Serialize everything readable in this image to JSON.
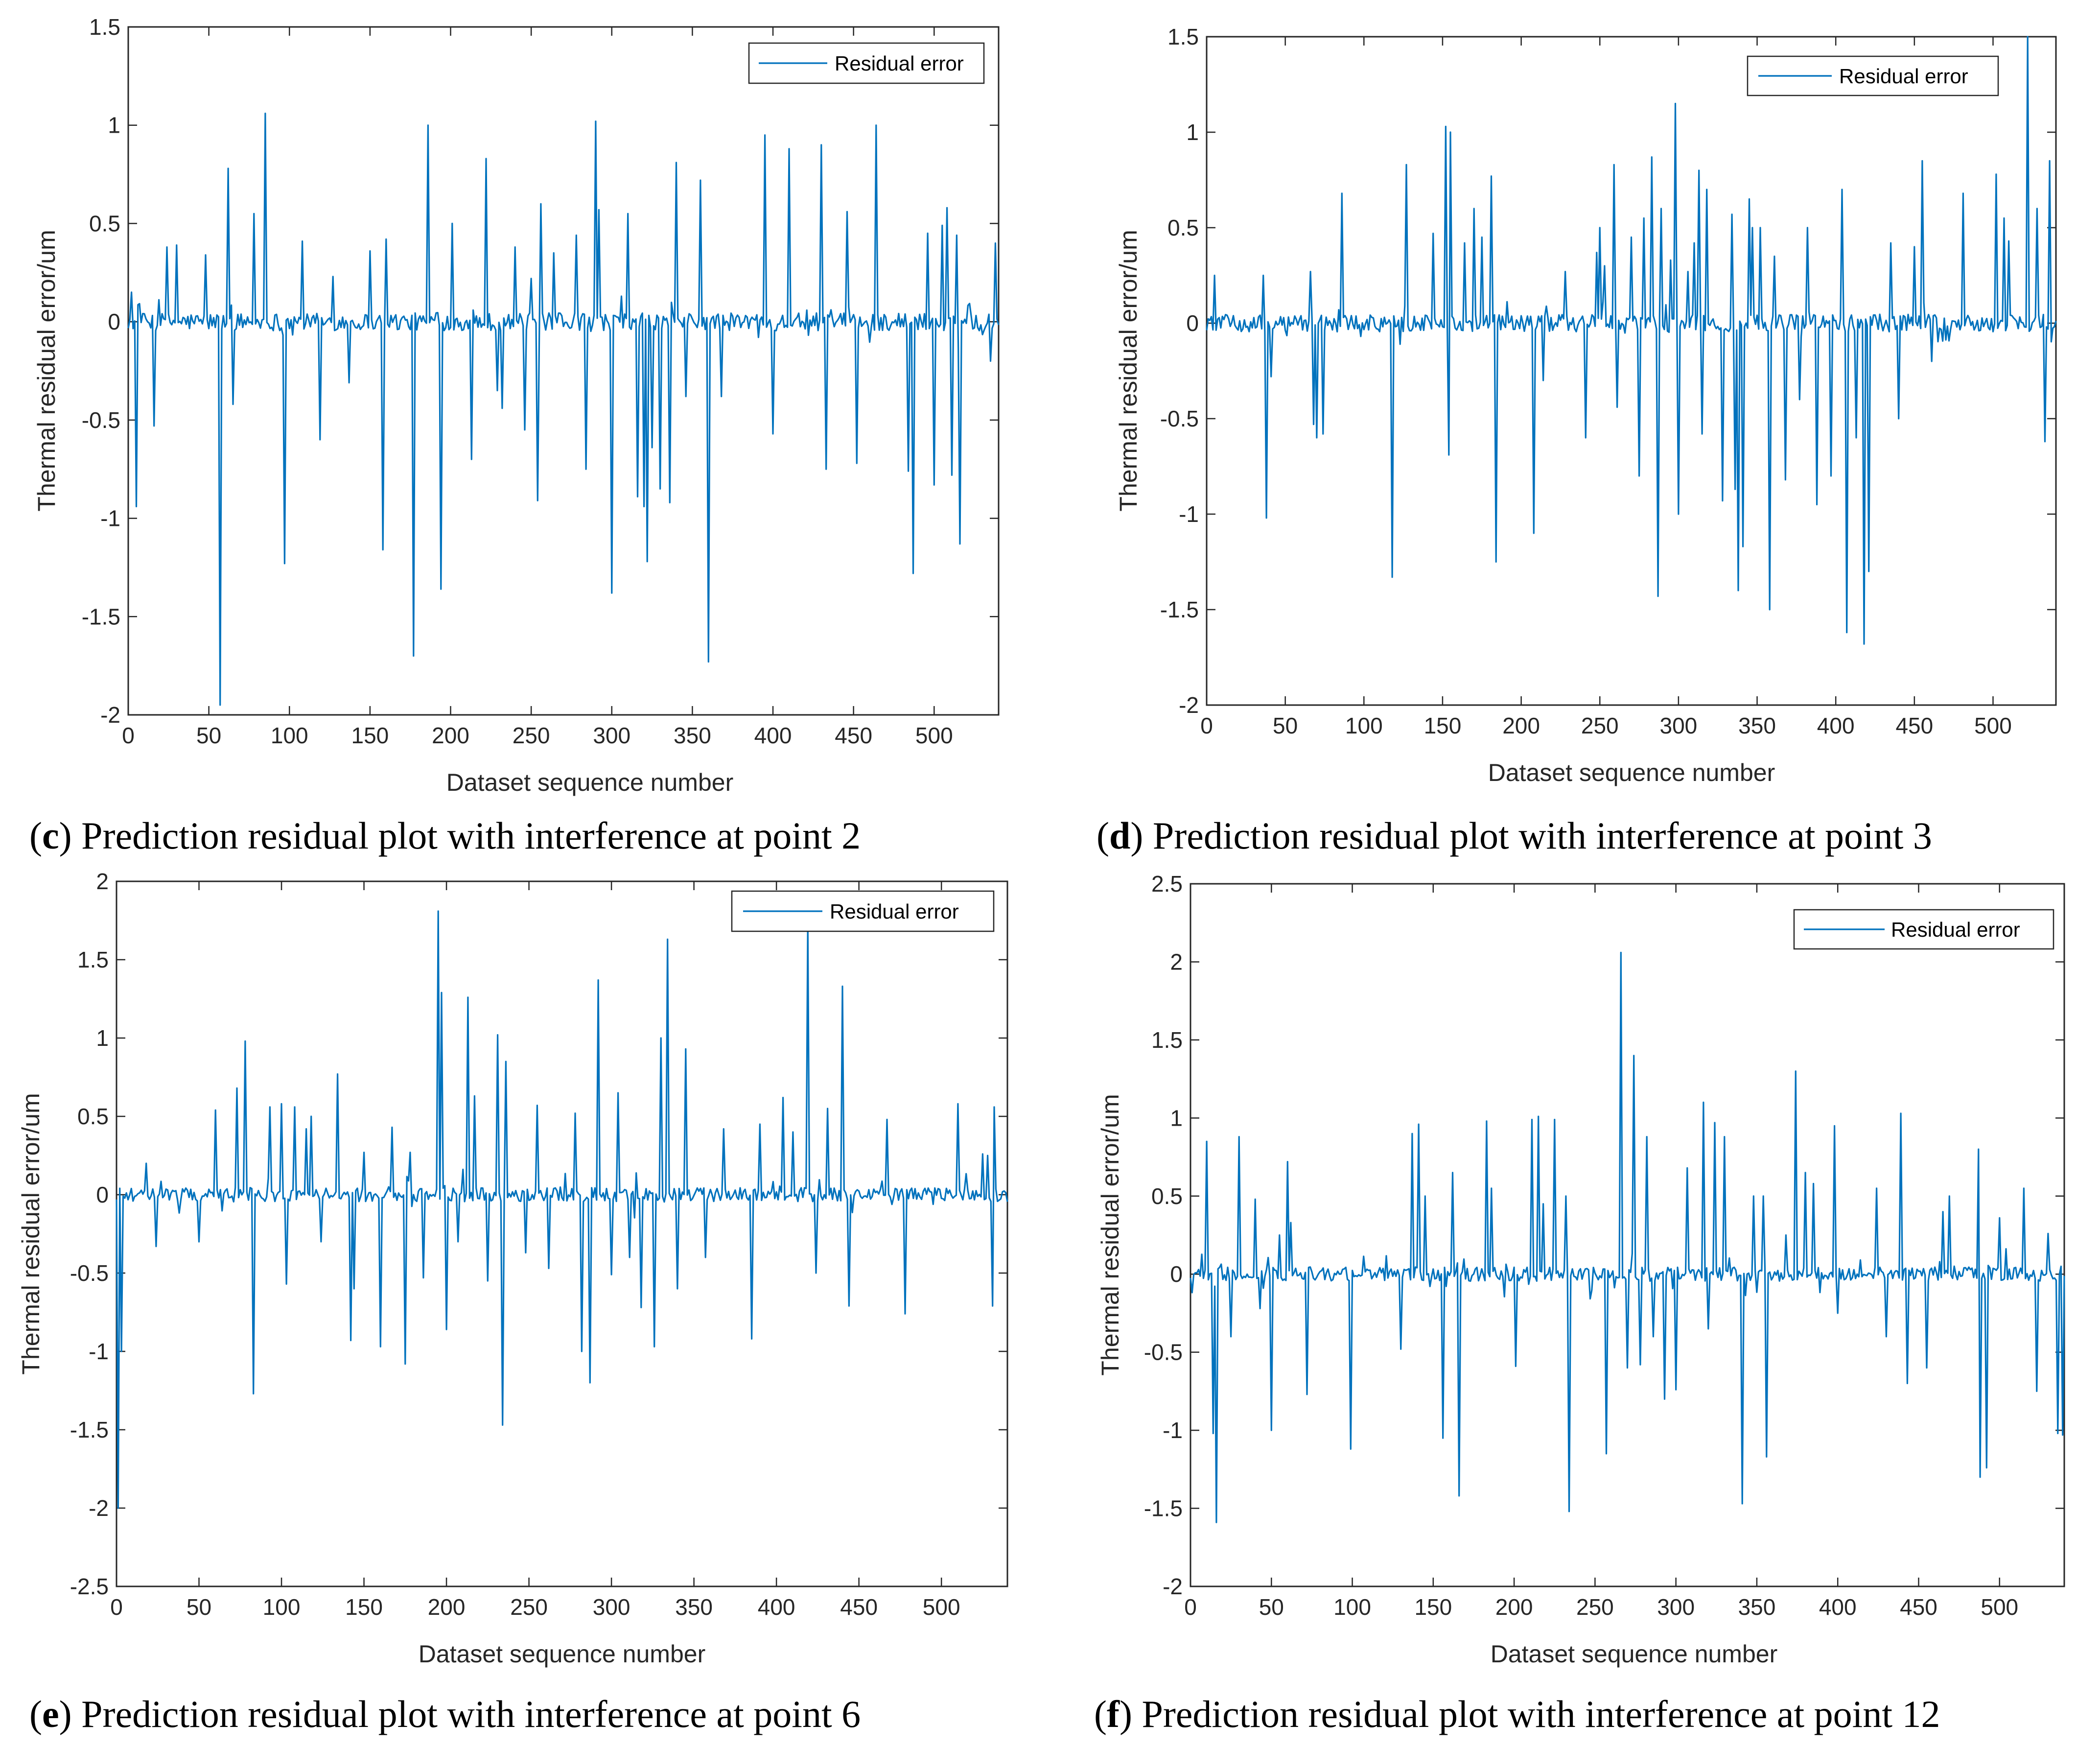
{
  "series_color": "#0072BD",
  "chart_data": [
    {
      "type": "line",
      "panel": "c",
      "caption": "Prediction residual plot with interference at point 2",
      "xlabel": "Dataset sequence number",
      "ylabel": "Thermal residual error/um",
      "legend": "Residual error",
      "legend_position": "top-right",
      "xlim": [
        0,
        540
      ],
      "ylim": [
        -2,
        1.5
      ],
      "xticks": [
        "0",
        "50",
        "100",
        "150",
        "200",
        "250",
        "300",
        "350",
        "400",
        "450",
        "500"
      ],
      "yticks": [
        "-2",
        "-1.5",
        "-1",
        "-0.5",
        "0",
        "0.5",
        "1",
        "1.5"
      ],
      "spikes": [
        [
          2,
          0.15
        ],
        [
          5,
          -0.94
        ],
        [
          16,
          -0.53
        ],
        [
          24,
          0.38
        ],
        [
          30,
          0.39
        ],
        [
          48,
          0.34
        ],
        [
          57,
          -1.95
        ],
        [
          62,
          0.78
        ],
        [
          65,
          -0.42
        ],
        [
          78,
          0.55
        ],
        [
          85,
          1.06
        ],
        [
          97,
          -1.23
        ],
        [
          108,
          0.41
        ],
        [
          119,
          -0.6
        ],
        [
          127,
          0.23
        ],
        [
          137,
          -0.31
        ],
        [
          150,
          0.36
        ],
        [
          158,
          -1.16
        ],
        [
          160,
          0.42
        ],
        [
          177,
          -1.7
        ],
        [
          186,
          1.0
        ],
        [
          194,
          -1.36
        ],
        [
          201,
          0.5
        ],
        [
          213,
          -0.7
        ],
        [
          222,
          0.83
        ],
        [
          229,
          -0.35
        ],
        [
          232,
          -0.44
        ],
        [
          240,
          0.38
        ],
        [
          246,
          -0.55
        ],
        [
          250,
          0.22
        ],
        [
          254,
          -0.91
        ],
        [
          256,
          0.6
        ],
        [
          264,
          0.35
        ],
        [
          278,
          0.44
        ],
        [
          284,
          -0.75
        ],
        [
          290,
          1.02
        ],
        [
          292,
          0.57
        ],
        [
          300,
          -1.38
        ],
        [
          310,
          0.55
        ],
        [
          316,
          -0.89
        ],
        [
          320,
          -0.94
        ],
        [
          322,
          -1.22
        ],
        [
          325,
          -0.64
        ],
        [
          330,
          -0.85
        ],
        [
          336,
          -0.92
        ],
        [
          340,
          0.81
        ],
        [
          346,
          -0.38
        ],
        [
          355,
          0.72
        ],
        [
          360,
          -1.73
        ],
        [
          368,
          -0.38
        ],
        [
          395,
          0.95
        ],
        [
          400,
          -0.57
        ],
        [
          410,
          0.88
        ],
        [
          430,
          0.9
        ],
        [
          433,
          -0.75
        ],
        [
          446,
          0.56
        ],
        [
          452,
          -0.72
        ],
        [
          464,
          1.0
        ],
        [
          484,
          -0.76
        ],
        [
          487,
          -1.28
        ],
        [
          496,
          0.45
        ],
        [
          500,
          -0.83
        ],
        [
          505,
          0.49
        ],
        [
          508,
          0.58
        ],
        [
          511,
          -0.78
        ],
        [
          514,
          0.44
        ],
        [
          516,
          -1.13
        ],
        [
          535,
          -0.2
        ],
        [
          538,
          0.4
        ]
      ]
    },
    {
      "type": "line",
      "panel": "d",
      "caption": "Prediction residual plot with interference at point 3",
      "xlabel": "Dataset sequence number",
      "ylabel": "Thermal residual error/um",
      "legend": "Residual error",
      "legend_position": "top-right",
      "xlim": [
        0,
        540
      ],
      "ylim": [
        -2,
        1.5
      ],
      "xticks": [
        "0",
        "50",
        "100",
        "150",
        "200",
        "250",
        "300",
        "350",
        "400",
        "450",
        "500"
      ],
      "yticks": [
        "-2",
        "-1.5",
        "-1",
        "-0.5",
        "0",
        "0.5",
        "1",
        "1.5"
      ],
      "spikes": [
        [
          5,
          0.25
        ],
        [
          36,
          0.25
        ],
        [
          38,
          -1.02
        ],
        [
          41,
          -0.28
        ],
        [
          66,
          0.27
        ],
        [
          68,
          -0.53
        ],
        [
          70,
          -0.6
        ],
        [
          74,
          -0.58
        ],
        [
          86,
          0.68
        ],
        [
          118,
          -1.33
        ],
        [
          127,
          0.83
        ],
        [
          144,
          0.47
        ],
        [
          152,
          1.03
        ],
        [
          154,
          -0.69
        ],
        [
          155,
          1.0
        ],
        [
          164,
          0.42
        ],
        [
          170,
          0.6
        ],
        [
          175,
          0.45
        ],
        [
          181,
          0.77
        ],
        [
          184,
          -1.25
        ],
        [
          208,
          -1.1
        ],
        [
          214,
          -0.3
        ],
        [
          228,
          0.27
        ],
        [
          241,
          -0.6
        ],
        [
          248,
          0.37
        ],
        [
          250,
          0.5
        ],
        [
          253,
          0.3
        ],
        [
          259,
          0.83
        ],
        [
          261,
          -0.44
        ],
        [
          270,
          0.45
        ],
        [
          275,
          -0.8
        ],
        [
          278,
          0.55
        ],
        [
          283,
          0.87
        ],
        [
          287,
          -1.43
        ],
        [
          289,
          0.6
        ],
        [
          295,
          0.33
        ],
        [
          298,
          1.15
        ],
        [
          300,
          -1.0
        ],
        [
          306,
          0.27
        ],
        [
          310,
          0.42
        ],
        [
          313,
          0.8
        ],
        [
          315,
          -0.58
        ],
        [
          318,
          0.7
        ],
        [
          328,
          -0.93
        ],
        [
          334,
          0.57
        ],
        [
          336,
          -0.87
        ],
        [
          338,
          -1.4
        ],
        [
          341,
          -1.17
        ],
        [
          345,
          0.65
        ],
        [
          347,
          0.5
        ],
        [
          352,
          0.5
        ],
        [
          358,
          -1.5
        ],
        [
          361,
          0.35
        ],
        [
          368,
          -0.82
        ],
        [
          377,
          -0.4
        ],
        [
          382,
          0.5
        ],
        [
          388,
          -0.95
        ],
        [
          397,
          -0.8
        ],
        [
          404,
          0.7
        ],
        [
          407,
          -1.62
        ],
        [
          413,
          -0.6
        ],
        [
          418,
          -1.68
        ],
        [
          421,
          -1.3
        ],
        [
          435,
          0.42
        ],
        [
          440,
          -0.5
        ],
        [
          450,
          0.4
        ],
        [
          455,
          0.85
        ],
        [
          461,
          -0.2
        ],
        [
          481,
          0.68
        ],
        [
          502,
          0.78
        ],
        [
          507,
          0.55
        ],
        [
          510,
          0.43
        ],
        [
          522,
          1.5
        ],
        [
          528,
          0.6
        ],
        [
          533,
          -0.62
        ],
        [
          536,
          0.85
        ]
      ]
    },
    {
      "type": "line",
      "panel": "e",
      "caption": "Prediction residual plot with interference at point 6",
      "xlabel": "Dataset sequence number",
      "ylabel": "Thermal residual error/um",
      "legend": "Residual error",
      "legend_position": "top-right",
      "xlim": [
        0,
        540
      ],
      "ylim": [
        -2.5,
        2
      ],
      "xticks": [
        "0",
        "50",
        "100",
        "150",
        "200",
        "250",
        "300",
        "350",
        "400",
        "450",
        "500"
      ],
      "yticks": [
        "-2.5",
        "-2",
        "-1.5",
        "-1",
        "-0.5",
        "0",
        "0.5",
        "1",
        "1.5",
        "2"
      ],
      "spikes": [
        [
          1,
          -2.0
        ],
        [
          3,
          -1.0
        ],
        [
          18,
          0.2
        ],
        [
          24,
          -0.33
        ],
        [
          50,
          -0.3
        ],
        [
          60,
          0.54
        ],
        [
          73,
          0.68
        ],
        [
          78,
          0.98
        ],
        [
          83,
          -1.27
        ],
        [
          93,
          0.56
        ],
        [
          100,
          0.58
        ],
        [
          103,
          -0.57
        ],
        [
          108,
          0.56
        ],
        [
          115,
          0.42
        ],
        [
          118,
          0.5
        ],
        [
          124,
          -0.3
        ],
        [
          134,
          0.77
        ],
        [
          142,
          -0.93
        ],
        [
          144,
          -0.6
        ],
        [
          150,
          0.27
        ],
        [
          160,
          -0.97
        ],
        [
          167,
          0.43
        ],
        [
          175,
          -1.08
        ],
        [
          178,
          0.27
        ],
        [
          186,
          -0.53
        ],
        [
          195,
          1.81
        ],
        [
          197,
          1.29
        ],
        [
          200,
          -0.86
        ],
        [
          207,
          -0.3
        ],
        [
          213,
          1.26
        ],
        [
          217,
          0.63
        ],
        [
          225,
          -0.55
        ],
        [
          231,
          1.02
        ],
        [
          234,
          -1.47
        ],
        [
          236,
          0.85
        ],
        [
          248,
          -0.37
        ],
        [
          255,
          0.57
        ],
        [
          262,
          -0.47
        ],
        [
          278,
          0.52
        ],
        [
          282,
          -1.0
        ],
        [
          287,
          -1.2
        ],
        [
          292,
          1.37
        ],
        [
          300,
          -0.51
        ],
        [
          304,
          0.65
        ],
        [
          311,
          -0.4
        ],
        [
          318,
          -0.72
        ],
        [
          326,
          -0.97
        ],
        [
          330,
          1.0
        ],
        [
          334,
          1.63
        ],
        [
          340,
          -0.6
        ],
        [
          345,
          0.93
        ],
        [
          357,
          -0.4
        ],
        [
          368,
          0.42
        ],
        [
          385,
          -0.92
        ],
        [
          390,
          0.45
        ],
        [
          404,
          0.62
        ],
        [
          410,
          0.4
        ],
        [
          419,
          1.72
        ],
        [
          424,
          -0.5
        ],
        [
          431,
          0.55
        ],
        [
          440,
          1.33
        ],
        [
          444,
          -0.71
        ],
        [
          467,
          0.48
        ],
        [
          478,
          -0.76
        ],
        [
          510,
          0.58
        ],
        [
          525,
          0.26
        ],
        [
          528,
          0.25
        ],
        [
          531,
          -0.71
        ],
        [
          532,
          0.56
        ]
      ]
    },
    {
      "type": "line",
      "panel": "f",
      "caption": "Prediction residual plot with interference at point 12",
      "xlabel": "Dataset sequence number",
      "ylabel": "Thermal residual error/um",
      "legend": "Residual error",
      "legend_position": "top-right",
      "xlim": [
        0,
        540
      ],
      "ylim": [
        -2,
        2.5
      ],
      "xticks": [
        "0",
        "50",
        "100",
        "150",
        "200",
        "250",
        "300",
        "350",
        "400",
        "450",
        "500"
      ],
      "yticks": [
        "-2",
        "-1.5",
        "-1",
        "-0.5",
        "0",
        "0.5",
        "1",
        "1.5",
        "2",
        "2.5"
      ],
      "spikes": [
        [
          10,
          0.85
        ],
        [
          14,
          -1.02
        ],
        [
          16,
          -1.59
        ],
        [
          25,
          -0.4
        ],
        [
          30,
          0.88
        ],
        [
          40,
          0.48
        ],
        [
          43,
          -0.22
        ],
        [
          50,
          -1.0
        ],
        [
          55,
          0.25
        ],
        [
          60,
          0.72
        ],
        [
          62,
          0.33
        ],
        [
          72,
          -0.77
        ],
        [
          99,
          -1.12
        ],
        [
          130,
          -0.48
        ],
        [
          137,
          0.9
        ],
        [
          141,
          0.96
        ],
        [
          145,
          0.5
        ],
        [
          156,
          -1.05
        ],
        [
          162,
          0.65
        ],
        [
          166,
          -1.42
        ],
        [
          183,
          0.98
        ],
        [
          186,
          0.55
        ],
        [
          201,
          -0.59
        ],
        [
          211,
          0.99
        ],
        [
          215,
          1.01
        ],
        [
          218,
          0.45
        ],
        [
          225,
          0.99
        ],
        [
          232,
          0.5
        ],
        [
          234,
          -1.52
        ],
        [
          257,
          -1.15
        ],
        [
          266,
          2.06
        ],
        [
          270,
          -0.6
        ],
        [
          274,
          1.4
        ],
        [
          278,
          -0.58
        ],
        [
          282,
          0.88
        ],
        [
          286,
          -0.4
        ],
        [
          293,
          -0.8
        ],
        [
          300,
          -0.74
        ],
        [
          307,
          0.68
        ],
        [
          317,
          1.1
        ],
        [
          320,
          -0.35
        ],
        [
          324,
          0.97
        ],
        [
          330,
          0.88
        ],
        [
          341,
          -1.47
        ],
        [
          348,
          0.5
        ],
        [
          354,
          0.5
        ],
        [
          356,
          -1.17
        ],
        [
          368,
          0.25
        ],
        [
          374,
          1.3
        ],
        [
          380,
          0.65
        ],
        [
          385,
          0.58
        ],
        [
          398,
          0.95
        ],
        [
          400,
          -0.25
        ],
        [
          424,
          0.55
        ],
        [
          430,
          -0.4
        ],
        [
          439,
          1.03
        ],
        [
          443,
          -0.7
        ],
        [
          455,
          -0.6
        ],
        [
          465,
          0.4
        ],
        [
          469,
          0.5
        ],
        [
          487,
          0.8
        ],
        [
          488,
          -1.3
        ],
        [
          492,
          -1.24
        ],
        [
          500,
          0.36
        ],
        [
          515,
          0.55
        ],
        [
          523,
          -0.75
        ],
        [
          530,
          0.26
        ],
        [
          536,
          -1.02
        ],
        [
          538,
          0.05
        ],
        [
          539,
          -1.03
        ]
      ]
    }
  ]
}
